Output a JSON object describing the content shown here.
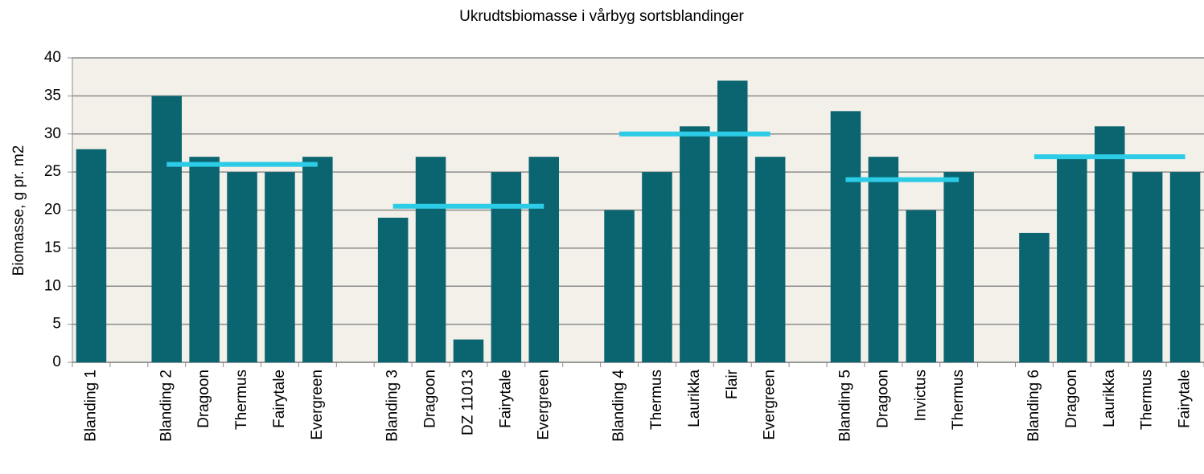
{
  "chart_data": {
    "type": "bar",
    "title": "Ukrudtsbiomasse i vårbyg sortsblandinger",
    "ylabel": "Biomasse, g pr. m2",
    "categories": [
      "Blanding 1",
      null,
      "Blanding 2",
      "Dragoon",
      "Thermus",
      "Fairytale",
      "Evergreen",
      null,
      "Blanding 3",
      "Dragoon",
      "DZ 11013",
      "Fairytale",
      "Evergreen",
      null,
      "Blanding 4",
      "Thermus",
      "Laurikka",
      "Flair",
      "Evergreen",
      null,
      "Blanding 5",
      "Dragoon",
      "Invictus",
      "Thermus",
      null,
      "Blanding 6",
      "Dragoon",
      "Laurikka",
      "Thermus",
      "Fairytale"
    ],
    "series": [
      {
        "type": "bar",
        "color": "#0b6570",
        "values": [
          28,
          null,
          35,
          27,
          25,
          25,
          27,
          null,
          19,
          27,
          3,
          25,
          27,
          null,
          20,
          25,
          31,
          37,
          27,
          null,
          33,
          27,
          20,
          25,
          null,
          17,
          27,
          31,
          25,
          25
        ]
      },
      {
        "type": "line",
        "color": "#2ccbe6",
        "values": [
          null,
          null,
          26,
          26,
          26,
          26,
          26,
          null,
          20.5,
          20.5,
          20.5,
          20.5,
          20.5,
          null,
          30,
          30,
          30,
          30,
          30,
          null,
          24,
          24,
          24,
          24,
          null,
          27,
          27,
          27,
          27,
          27
        ]
      }
    ],
    "ylim": [
      0,
      40
    ],
    "yticks": [
      0,
      5,
      10,
      15,
      20,
      25,
      30,
      35,
      40
    ],
    "grid": true
  }
}
